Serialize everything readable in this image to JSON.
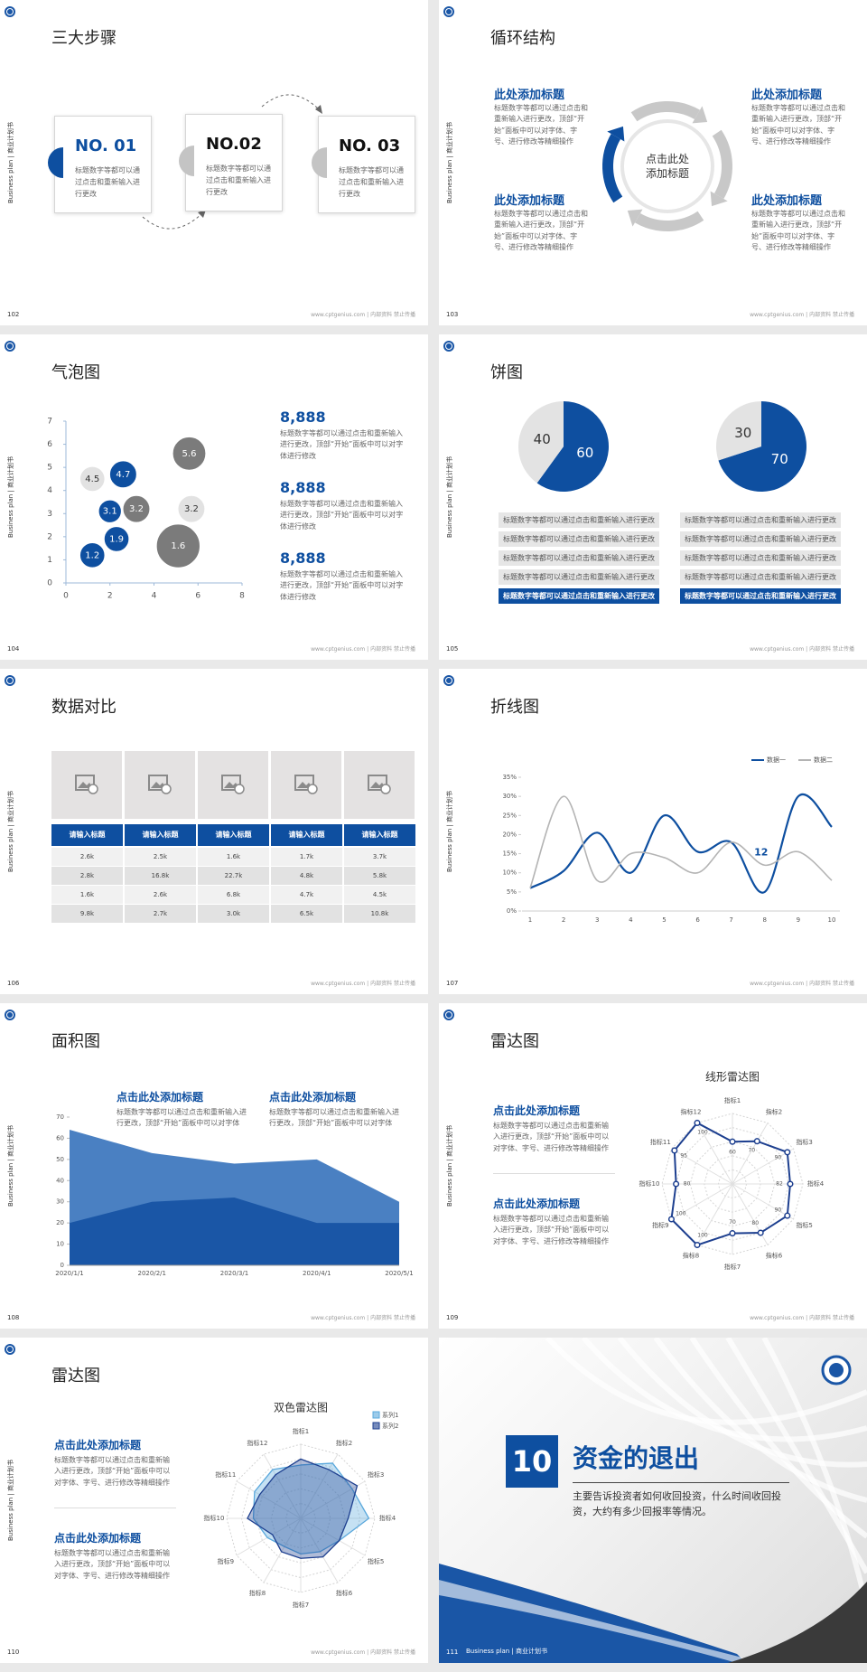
{
  "side_label": "Business plan | 商业计划书",
  "footer": "www.cptgenius.com | 内部资料 禁止传播",
  "slides": [
    {
      "number": "102",
      "title": "三大步骤",
      "steps": [
        {
          "label": "NO. 01",
          "text": "标题数字等都可以通过点击和重新输入进行更改"
        },
        {
          "label": "NO.02",
          "text": "标题数字等都可以通过点击和重新输入进行更改"
        },
        {
          "label": "NO. 03",
          "text": "标题数字等都可以通过点击和重新输入进行更改"
        }
      ]
    },
    {
      "number": "103",
      "title": "循环结构",
      "center": "点击此处添加标题",
      "blocks": [
        {
          "heading": "此处添加标题",
          "text": "标题数字等都可以通过点击和重新输入进行更改，顶部“开始”面板中可以对字体、字号、进行修改等精细操作"
        },
        {
          "heading": "此处添加标题",
          "text": "标题数字等都可以通过点击和重新输入进行更改，顶部“开始”面板中可以对字体、字号、进行修改等精细操作"
        },
        {
          "heading": "此处添加标题",
          "text": "标题数字等都可以通过点击和重新输入进行更改，顶部“开始”面板中可以对字体、字号、进行修改等精细操作"
        },
        {
          "heading": "此处添加标题",
          "text": "标题数字等都可以通过点击和重新输入进行更改，顶部“开始”面板中可以对字体、字号、进行修改等精细操作"
        }
      ]
    },
    {
      "number": "104",
      "title": "气泡图",
      "chart": {
        "type": "bubble",
        "xlim": [
          0,
          8
        ],
        "xticks": [
          0,
          2,
          4,
          6,
          8
        ],
        "ylim": [
          0,
          7
        ],
        "yticks": [
          0,
          1,
          2,
          3,
          4,
          5,
          6,
          7
        ],
        "points": [
          {
            "x": 1.2,
            "y": 4.5,
            "size": 12,
            "color": "#e2e2e2"
          },
          {
            "x": 2.6,
            "y": 4.7,
            "size": 13,
            "color": "#0e4fa0"
          },
          {
            "x": 5.6,
            "y": 5.6,
            "size": 16,
            "color": "#7b7b7b"
          },
          {
            "x": 2,
            "y": 3.1,
            "size": 11,
            "color": "#0e4fa0"
          },
          {
            "x": 3.2,
            "y": 3.2,
            "size": 13,
            "color": "#7b7b7b"
          },
          {
            "x": 5.7,
            "y": 3.2,
            "size": 13,
            "color": "#e2e2e2"
          },
          {
            "x": 2.3,
            "y": 1.9,
            "size": 12,
            "color": "#0e4fa0"
          },
          {
            "x": 5.1,
            "y": 1.6,
            "size": 21,
            "color": "#7b7b7b"
          },
          {
            "x": 1.2,
            "y": 1.2,
            "size": 12,
            "color": "#0e4fa0"
          }
        ]
      },
      "stats": [
        {
          "value": "8,888",
          "text": "标题数字等都可以通过点击和重新输入进行更改，顶部“开始”面板中可以对字体进行修改"
        },
        {
          "value": "8,888",
          "text": "标题数字等都可以通过点击和重新输入进行更改，顶部“开始”面板中可以对字体进行修改"
        },
        {
          "value": "8,888",
          "text": "标题数字等都可以通过点击和重新输入进行更改，顶部“开始”面板中可以对字体进行修改"
        }
      ]
    },
    {
      "number": "105",
      "title": "饼图",
      "charts": [
        {
          "type": "pie",
          "values": [
            60,
            40
          ],
          "colors": [
            "#0e4fa0",
            "#e3e3e3"
          ]
        },
        {
          "type": "pie",
          "values": [
            70,
            30
          ],
          "colors": [
            "#0e4fa0",
            "#e3e3e3"
          ]
        }
      ],
      "lists": [
        [
          "标题数字等都可以通过点击和重新输入进行更改",
          "标题数字等都可以通过点击和重新输入进行更改",
          "标题数字等都可以通过点击和重新输入进行更改",
          "标题数字等都可以通过点击和重新输入进行更改",
          "标题数字等都可以通过点击和重新输入进行更改"
        ],
        [
          "标题数字等都可以通过点击和重新输入进行更改",
          "标题数字等都可以通过点击和重新输入进行更改",
          "标题数字等都可以通过点击和重新输入进行更改",
          "标题数字等都可以通过点击和重新输入进行更改",
          "标题数字等都可以通过点击和重新输入进行更改"
        ]
      ]
    },
    {
      "number": "106",
      "title": "数据对比",
      "table": {
        "header": [
          "请输入标题",
          "请输入标题",
          "请输入标题",
          "请输入标题",
          "请输入标题"
        ],
        "rows": [
          [
            "2.6k",
            "2.5k",
            "1.6k",
            "1.7k",
            "3.7k"
          ],
          [
            "2.8k",
            "16.8k",
            "22.7k",
            "4.8k",
            "5.8k"
          ],
          [
            "1.6k",
            "2.6k",
            "6.8k",
            "4.7k",
            "4.5k"
          ],
          [
            "9.8k",
            "2.7k",
            "3.0k",
            "6.5k",
            "10.8k"
          ]
        ]
      }
    },
    {
      "number": "107",
      "title": "折线图",
      "chart": {
        "type": "line",
        "x": [
          1,
          2,
          3,
          4,
          5,
          6,
          7,
          8,
          9,
          10
        ],
        "xlim": [
          1,
          10
        ],
        "ylim": [
          0,
          35
        ],
        "yticks": [
          {
            "value": 0,
            "label": "0%"
          },
          {
            "value": 5,
            "label": "5%"
          },
          {
            "value": 10,
            "label": "10%"
          },
          {
            "value": 15,
            "label": "15%"
          },
          {
            "value": 20,
            "label": "20%"
          },
          {
            "value": 25,
            "label": "25%"
          },
          {
            "value": 30,
            "label": "30%"
          },
          {
            "value": 35,
            "label": "35%"
          }
        ],
        "legend": "top-right",
        "series": [
          {
            "name": "数据一",
            "color": "#0e4fa0",
            "values": [
              6,
              10.5,
              20.5,
              10,
              25,
              15.5,
              18,
              5,
              30,
              22
            ]
          },
          {
            "name": "数据二",
            "color": "#b4b4b4",
            "values": [
              6,
              30,
              8,
              15,
              14,
              10,
              18,
              12,
              15.5,
              8
            ],
            "value_labels": [
              null,
              null,
              null,
              null,
              null,
              null,
              null,
              "12",
              null,
              null
            ]
          }
        ]
      }
    },
    {
      "number": "108",
      "title": "面积图",
      "notes": [
        {
          "heading": "点击此处添加标题",
          "text": "标题数字等都可以通过点击和重新输入进行更改，顶部“开始”面板中可以对字体"
        },
        {
          "heading": "点击此处添加标题",
          "text": "标题数字等都可以通过点击和重新输入进行更改，顶部“开始”面板中可以对字体"
        }
      ],
      "chart": {
        "type": "area",
        "categories": [
          "2020/1/1",
          "2020/2/1",
          "2020/3/1",
          "2020/4/1",
          "2020/5/1"
        ],
        "ylim": [
          0,
          70
        ],
        "yticks": [
          0,
          10,
          20,
          30,
          40,
          50,
          60,
          70
        ],
        "series": [
          {
            "color": "#4a80c2",
            "values": [
              64,
              53,
              48,
              50,
              30
            ]
          },
          {
            "color": "#1a56a6",
            "values": [
              20,
              30,
              32,
              20,
              20
            ]
          }
        ]
      }
    },
    {
      "number": "109",
      "title": "雷达图",
      "notes": [
        {
          "heading": "点击此处添加标题",
          "text": "标题数字等都可以通过点击和重新输入进行更改，顶部“开始”面板中可以对字体、字号、进行修改等精细操作"
        },
        {
          "heading": "点击此处添加标题",
          "text": "标题数字等都可以通过点击和重新输入进行更改，顶部“开始”面板中可以对字体、字号、进行修改等精细操作"
        }
      ],
      "chart": {
        "type": "radar",
        "title": "线形雷达图",
        "categories": [
          "指标1",
          "指标2",
          "指标3",
          "指标4",
          "指标5",
          "指标6",
          "指标7",
          "指标8",
          "指标9",
          "指标10",
          "指标11",
          "指标12"
        ],
        "rlim": [
          0,
          100
        ],
        "rticks": [
          20,
          40,
          60,
          80,
          100
        ],
        "show_values": true,
        "series": [
          {
            "color": "#1d3f8f",
            "values": [
              60,
              70,
              90,
              82,
              90,
              80,
              70,
              100,
              100,
              80,
              95,
              100
            ]
          }
        ]
      }
    },
    {
      "number": "110",
      "title": "雷达图",
      "notes": [
        {
          "heading": "点击此处添加标题",
          "text": "标题数字等都可以通过点击和重新输入进行更改，顶部“开始”面板中可以对字体、字号、进行修改等精细操作"
        },
        {
          "heading": "点击此处添加标题",
          "text": "标题数字等都可以通过点击和重新输入进行更改，顶部“开始”面板中可以对字体、字号、进行修改等精细操作"
        }
      ],
      "chart": {
        "type": "radar",
        "title": "双色雷达图",
        "legend": "top-right",
        "categories": [
          "指标1",
          "指标2",
          "指标3",
          "指标4",
          "指标5",
          "指标6",
          "指标7",
          "指标8",
          "指标9",
          "指标10",
          "指标11",
          "指标12"
        ],
        "rlim": [
          0,
          5
        ],
        "rticks": [
          1,
          2,
          3,
          4,
          5
        ],
        "series": [
          {
            "name": "系列1",
            "color": "#5aa8dc",
            "values": [
              3.6,
              4.3,
              4.0,
              4.6,
              3.0,
              2.6,
              2.4,
              2.2,
              2.6,
              3.2,
              3.6,
              3.8
            ]
          },
          {
            "name": "系列2",
            "color": "#1d3f8f",
            "values": [
              4.0,
              3.8,
              4.4,
              3.2,
              3.0,
              3.0,
              2.7,
              2.6,
              2.2,
              3.6,
              3.2,
              3.4
            ]
          }
        ]
      }
    },
    {
      "number": "111",
      "section": {
        "index": "10",
        "title": "资金的退出",
        "text": "主要告诉投资者如何收回投资，什么时间收回投资，大约有多少回报率等情况。"
      }
    }
  ]
}
